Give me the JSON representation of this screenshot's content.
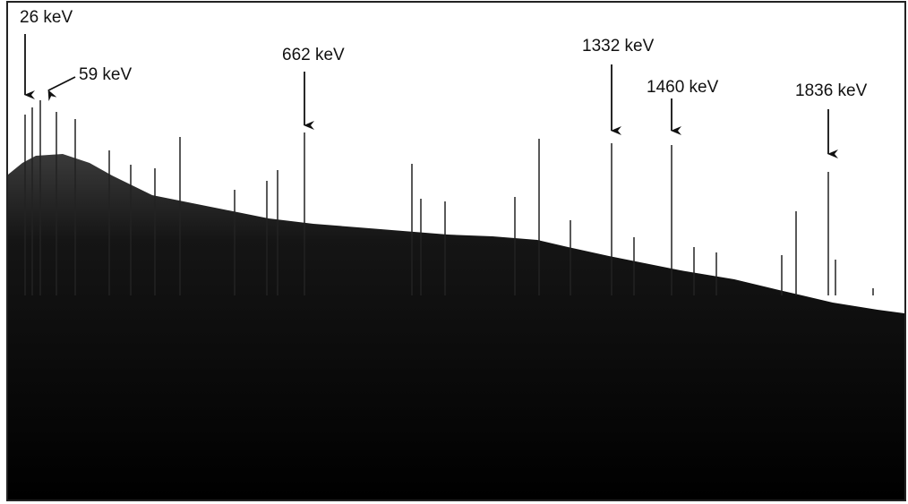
{
  "annotations": [
    {
      "label": "26 keV"
    },
    {
      "label": "59 keV"
    },
    {
      "label": "662 keV"
    },
    {
      "label": "1332 keV"
    },
    {
      "label": "1460 keV"
    },
    {
      "label": "1836 keV"
    }
  ]
}
